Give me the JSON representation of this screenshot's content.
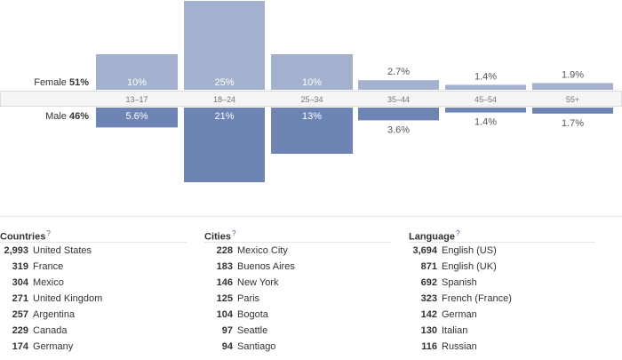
{
  "chart_data": {
    "type": "bar",
    "categories": [
      "13-17",
      "18-24",
      "25-34",
      "35-44",
      "45-54",
      "55+"
    ],
    "series": [
      {
        "name": "Female",
        "total": "51%",
        "values": [
          10,
          25,
          10,
          2.7,
          1.4,
          1.9
        ],
        "labels": [
          "10%",
          "25%",
          "10%",
          "2.7%",
          "1.4%",
          "1.9%"
        ]
      },
      {
        "name": "Male",
        "total": "46%",
        "values": [
          5.6,
          21,
          13,
          3.6,
          1.4,
          1.7
        ],
        "labels": [
          "5.6%",
          "21%",
          "13%",
          "3.6%",
          "1.4%",
          "1.7%"
        ]
      }
    ],
    "colors": {
      "female": "#a3b1ce",
      "male": "#6d84b4",
      "axis_band": "#f5f5f5",
      "axis_border": "#dcdcdc"
    },
    "title": "",
    "xlabel": "",
    "ylabel": ""
  },
  "lists": {
    "countries": {
      "title": "Countries",
      "help": "?",
      "rows": [
        {
          "count": "2,993",
          "name": "United States"
        },
        {
          "count": "319",
          "name": "France"
        },
        {
          "count": "304",
          "name": "Mexico"
        },
        {
          "count": "271",
          "name": "United Kingdom"
        },
        {
          "count": "257",
          "name": "Argentina"
        },
        {
          "count": "229",
          "name": "Canada"
        },
        {
          "count": "174",
          "name": "Germany"
        }
      ]
    },
    "cities": {
      "title": "Cities",
      "help": "?",
      "rows": [
        {
          "count": "228",
          "name": "Mexico City"
        },
        {
          "count": "183",
          "name": "Buenos Aires"
        },
        {
          "count": "146",
          "name": "New York"
        },
        {
          "count": "125",
          "name": "Paris"
        },
        {
          "count": "104",
          "name": "Bogota"
        },
        {
          "count": "97",
          "name": "Seattle"
        },
        {
          "count": "94",
          "name": "Santiago"
        }
      ]
    },
    "language": {
      "title": "Language",
      "help": "?",
      "rows": [
        {
          "count": "3,694",
          "name": "English (US)"
        },
        {
          "count": "871",
          "name": "English (UK)"
        },
        {
          "count": "692",
          "name": "Spanish"
        },
        {
          "count": "323",
          "name": "French (France)"
        },
        {
          "count": "142",
          "name": "German"
        },
        {
          "count": "130",
          "name": "Italian"
        },
        {
          "count": "116",
          "name": "Russian"
        }
      ]
    }
  }
}
